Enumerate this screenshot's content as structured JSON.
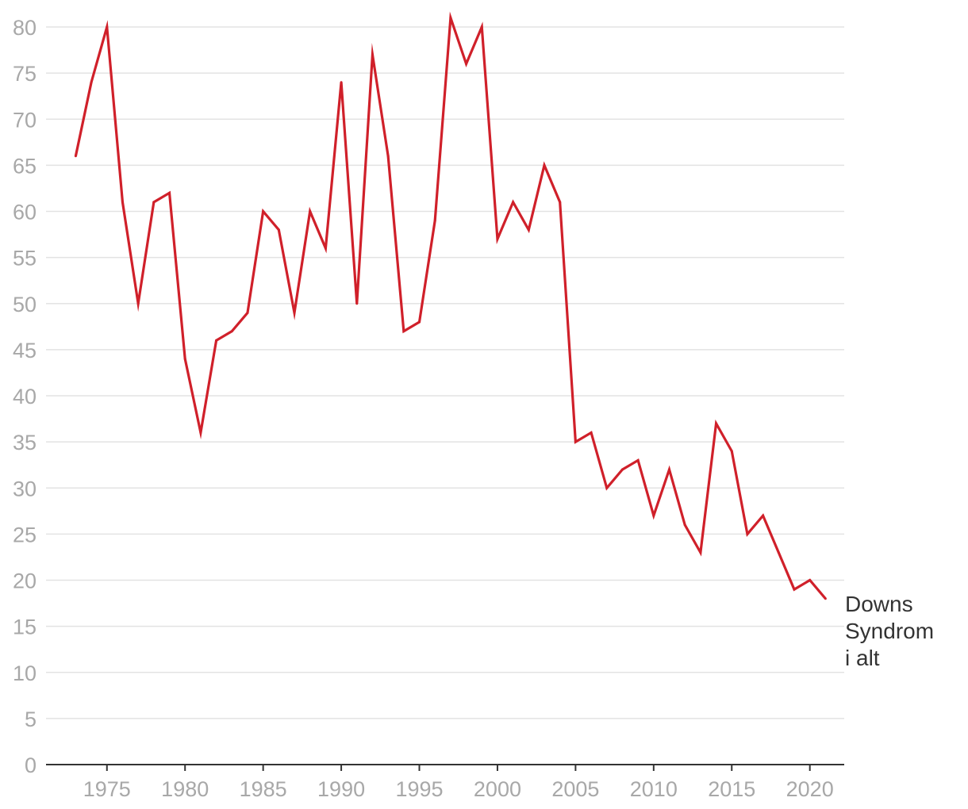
{
  "chart_data": {
    "type": "line",
    "title": "",
    "xlabel": "",
    "ylabel": "",
    "ylim": [
      0,
      80
    ],
    "xlim": [
      1971.1,
      2022.2
    ],
    "y_ticks": [
      0,
      5,
      10,
      15,
      20,
      25,
      30,
      35,
      40,
      45,
      50,
      55,
      60,
      65,
      70,
      75,
      80
    ],
    "x_ticks": [
      1975,
      1980,
      1985,
      1990,
      1995,
      2000,
      2005,
      2010,
      2015,
      2020
    ],
    "grid": true,
    "series": [
      {
        "name": "Downs Syndrom i alt",
        "label_lines": [
          "Downs",
          "Syndrom",
          "i alt"
        ],
        "color": "#d0202a",
        "x": [
          1973,
          1974,
          1975,
          1976,
          1977,
          1978,
          1979,
          1980,
          1981,
          1982,
          1983,
          1984,
          1985,
          1986,
          1987,
          1988,
          1989,
          1990,
          1991,
          1992,
          1993,
          1994,
          1995,
          1996,
          1997,
          1998,
          1999,
          2000,
          2001,
          2002,
          2003,
          2004,
          2005,
          2006,
          2007,
          2008,
          2009,
          2010,
          2011,
          2012,
          2013,
          2014,
          2015,
          2016,
          2017,
          2018,
          2019,
          2020,
          2021
        ],
        "values": [
          66,
          74,
          80,
          61,
          50,
          61,
          62,
          44,
          36,
          46,
          47,
          49,
          60,
          58,
          49,
          60,
          56,
          74,
          50,
          77,
          66,
          47,
          48,
          59,
          81,
          76,
          80,
          57,
          61,
          58,
          65,
          61,
          35,
          36,
          30,
          32,
          33,
          27,
          32,
          26,
          23,
          37,
          34,
          25,
          27,
          23,
          19,
          20,
          18
        ]
      }
    ]
  }
}
